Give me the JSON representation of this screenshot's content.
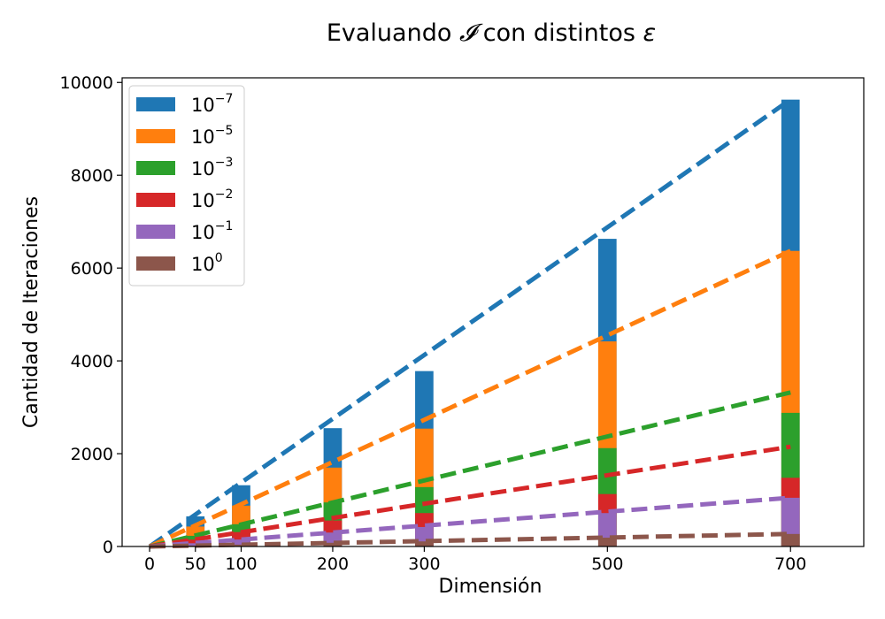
{
  "chart_data": {
    "type": "bar",
    "title_prefix": "Evaluando ",
    "title_symbol": "𝓘",
    "title_mid": " con distintos ",
    "title_epsilon": "ε",
    "xlabel": "Dimensión",
    "ylabel": "Cantidad de Iteraciones",
    "x": [
      50,
      100,
      200,
      300,
      500,
      700
    ],
    "x_ticks": [
      0,
      50,
      100,
      200,
      300,
      500,
      700
    ],
    "y_ticks": [
      0,
      2000,
      4000,
      6000,
      8000,
      10000
    ],
    "xlim": [
      -30,
      780
    ],
    "ylim": [
      0,
      10100
    ],
    "bar_width": 20,
    "grid": false,
    "legend_position": "top-left",
    "series": [
      {
        "name": "10^-7",
        "base": "10",
        "exp": "−7",
        "color": "#1f77b4",
        "values": [
          650,
          1320,
          2550,
          3780,
          6630,
          9630
        ],
        "trend_end": 9630
      },
      {
        "name": "10^-5",
        "base": "10",
        "exp": "−5",
        "color": "#ff7f0e",
        "values": [
          430,
          880,
          1700,
          2540,
          4420,
          6370
        ],
        "trend_end": 6370
      },
      {
        "name": "10^-3",
        "base": "10",
        "exp": "−3",
        "color": "#2ca02c",
        "values": [
          230,
          480,
          950,
          1280,
          2120,
          2880
        ],
        "trend_end": 3320
      },
      {
        "name": "10^-2",
        "base": "10",
        "exp": "−2",
        "color": "#d62728",
        "values": [
          150,
          310,
          560,
          720,
          1130,
          1480
        ],
        "trend_end": 2150
      },
      {
        "name": "10^-1",
        "base": "10",
        "exp": "−1",
        "color": "#9467bd",
        "values": [
          70,
          150,
          300,
          420,
          720,
          1050
        ],
        "trend_end": 1050
      },
      {
        "name": "10^0",
        "base": "10",
        "exp": "0",
        "color": "#8c564b",
        "values": [
          20,
          40,
          80,
          110,
          190,
          270
        ],
        "trend_end": 270
      }
    ]
  }
}
